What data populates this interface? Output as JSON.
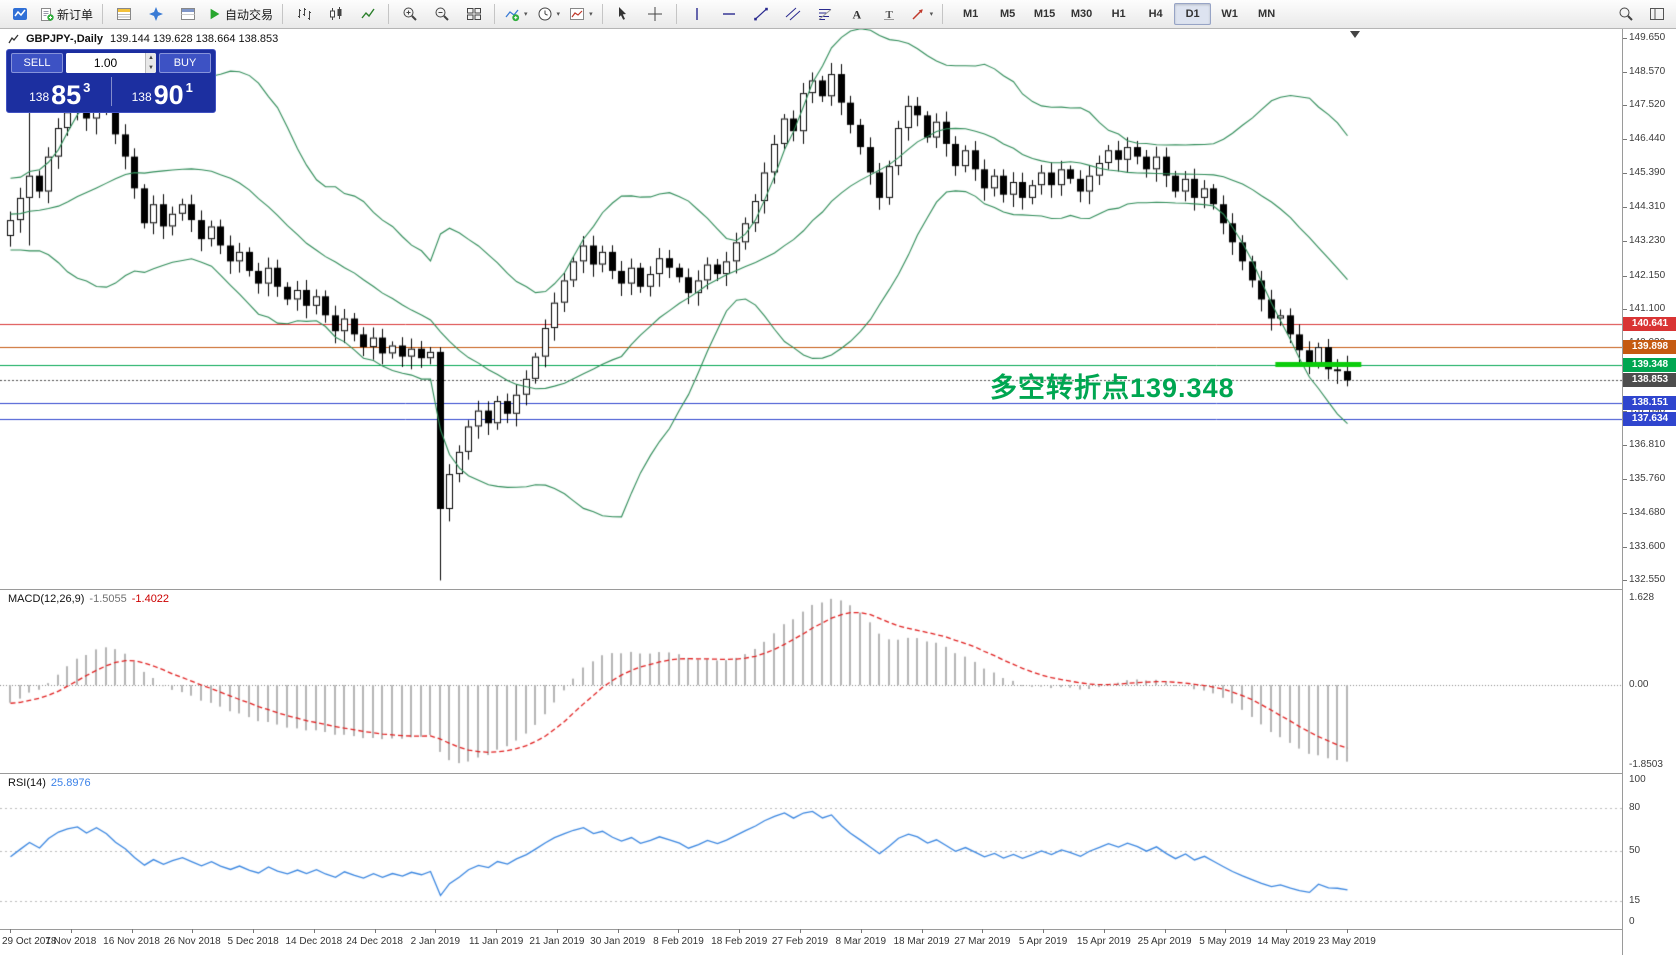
{
  "toolbar": {
    "new_order_label": "新订单",
    "autotrading_label": "自动交易",
    "timeframes": [
      "M1",
      "M5",
      "M15",
      "M30",
      "H1",
      "H4",
      "D1",
      "W1",
      "MN"
    ],
    "active_timeframe": "D1"
  },
  "chart": {
    "symbol_title": "GBPJPY-,Daily",
    "ohlc_display": "139.144 139.628 138.664 138.853",
    "annotation": "多空转折点139.348",
    "annotation_color": "#00A651"
  },
  "trade_panel": {
    "sell_label": "SELL",
    "buy_label": "BUY",
    "lot_size": "1.00",
    "sell_price_small": "138",
    "sell_price_big": "85",
    "sell_price_sup": "3",
    "buy_price_small": "138",
    "buy_price_big": "90",
    "buy_price_sup": "1"
  },
  "price_scale": {
    "ticks": [
      149.65,
      148.57,
      147.52,
      146.44,
      145.39,
      144.31,
      143.23,
      142.15,
      141.1,
      140.02,
      138.94,
      137.89,
      136.81,
      135.76,
      134.68,
      133.6,
      132.55
    ]
  },
  "macd_panel": {
    "label": "MACD(12,26,9)",
    "value1": "-1.5055",
    "value2": "-1.4022",
    "scale_top": "1.628",
    "scale_zero": "0.00",
    "scale_bottom": "-1.8503"
  },
  "rsi_panel": {
    "label": "RSI(14)",
    "value": "25.8976",
    "scale": [
      {
        "label": "100",
        "value": 100
      },
      {
        "label": "80",
        "value": 80
      },
      {
        "label": "50",
        "value": 50
      },
      {
        "label": "15",
        "value": 15
      },
      {
        "label": "0",
        "value": 0
      }
    ],
    "levels": [
      80,
      50,
      15
    ]
  },
  "time_axis": {
    "labels": [
      "29 Oct 2018",
      "7 Nov 2018",
      "16 Nov 2018",
      "26 Nov 2018",
      "5 Dec 2018",
      "14 Dec 2018",
      "24 Dec 2018",
      "2 Jan 2019",
      "11 Jan 2019",
      "21 Jan 2019",
      "30 Jan 2019",
      "8 Feb 2019",
      "18 Feb 2019",
      "27 Feb 2019",
      "8 Mar 2019",
      "18 Mar 2019",
      "27 Mar 2019",
      "5 Apr 2019",
      "15 Apr 2019",
      "25 Apr 2019",
      "5 May 2019",
      "14 May 2019",
      "23 May 2019"
    ]
  },
  "chart_data": {
    "type": "candlestick",
    "symbol": "GBPJPY",
    "timeframe": "Daily",
    "last_ohlc": {
      "open": 139.144,
      "high": 139.628,
      "low": 138.664,
      "close": 138.853
    },
    "first_open": 143.4,
    "pre_closes": [
      145.6,
      146.1,
      145.4,
      144.9,
      145.5,
      146.0,
      145.2,
      144.6,
      145.1,
      144.5,
      143.9,
      144.3,
      143.8,
      144.2,
      144.8,
      145.3,
      144.7,
      144.1,
      144.6,
      145.0,
      144.4,
      143.8,
      143.3,
      143.7,
      144.1,
      143.6,
      143.1,
      143.5,
      144.0,
      143.6
    ],
    "closes": [
      143.9,
      144.6,
      145.3,
      144.8,
      145.9,
      146.8,
      147.3,
      147.6,
      147.1,
      147.9,
      147.4,
      146.6,
      145.9,
      144.9,
      143.8,
      144.4,
      143.7,
      144.1,
      144.4,
      143.9,
      143.3,
      143.7,
      143.1,
      142.6,
      142.9,
      142.3,
      141.9,
      142.4,
      141.8,
      141.4,
      141.7,
      141.2,
      141.5,
      140.9,
      140.4,
      140.8,
      140.3,
      139.9,
      140.2,
      139.7,
      139.95,
      139.6,
      139.85,
      139.55,
      139.75,
      134.8,
      135.9,
      136.6,
      137.4,
      137.9,
      137.5,
      138.2,
      137.8,
      138.4,
      138.9,
      139.6,
      140.5,
      141.3,
      142.0,
      142.6,
      143.1,
      142.5,
      142.9,
      142.3,
      141.9,
      142.4,
      141.8,
      142.2,
      142.7,
      142.4,
      142.1,
      141.6,
      142.0,
      142.5,
      142.2,
      142.6,
      143.2,
      143.8,
      144.5,
      145.4,
      146.3,
      147.1,
      146.7,
      147.9,
      148.3,
      147.8,
      148.5,
      147.6,
      146.9,
      146.2,
      145.4,
      144.6,
      145.6,
      146.8,
      147.5,
      147.2,
      146.5,
      147.0,
      146.3,
      145.6,
      146.1,
      145.5,
      144.9,
      145.3,
      144.7,
      145.1,
      144.6,
      145.0,
      145.4,
      145.0,
      145.5,
      145.2,
      144.8,
      145.3,
      145.7,
      146.1,
      145.8,
      146.2,
      145.9,
      145.5,
      145.9,
      145.3,
      144.8,
      145.2,
      144.6,
      144.9,
      144.4,
      143.8,
      143.2,
      142.6,
      142.0,
      141.4,
      140.8,
      140.9,
      140.3,
      139.8,
      139.4,
      139.9,
      139.2,
      139.14,
      138.85
    ],
    "candle_overrides": [
      {
        "i": 2,
        "o": 144.6,
        "h": 147.4,
        "l": 143.1,
        "c": 145.3
      },
      {
        "i": 9,
        "o": 147.1,
        "h": 148.3,
        "l": 146.6,
        "c": 147.9
      },
      {
        "i": 45,
        "o": 139.75,
        "h": 139.9,
        "l": 132.55,
        "c": 134.8
      },
      {
        "i": 86,
        "o": 147.8,
        "h": 148.85,
        "l": 147.5,
        "c": 148.5
      },
      {
        "i": 140,
        "o": 139.144,
        "h": 139.628,
        "l": 138.664,
        "c": 138.853
      }
    ],
    "hlines": [
      {
        "price": 140.641,
        "label": "140.641",
        "color": "#D93434",
        "style": "solid"
      },
      {
        "price": 139.898,
        "label": "139.898",
        "color": "#C55A11",
        "style": "solid"
      },
      {
        "price": 139.348,
        "label": "139.348",
        "color": "#00A651",
        "style": "solid"
      },
      {
        "price": 138.853,
        "label": "138.853",
        "color": "#4D4D4D",
        "style": "dot"
      },
      {
        "price": 138.151,
        "label": "138.151",
        "color": "#2F45CE",
        "style": "solid"
      },
      {
        "price": 137.634,
        "label": "137.634",
        "color": "#2F45CE",
        "style": "solid"
      }
    ],
    "green_segment": {
      "price": 139.348,
      "from_candle": 132.5,
      "to_candle": 141.5,
      "color": "#0BCC0B",
      "width": 5
    },
    "bollinger": {
      "period": 20,
      "deviation": 2,
      "color": "#2E8B57"
    },
    "macd": {
      "fast": 12,
      "slow": 26,
      "signal": 9,
      "hist_color": "#B5B5B5",
      "signal_color": "#E02020"
    },
    "rsi": {
      "period": 14,
      "color": "#3A86E0"
    },
    "y_range_main": [
      132.28,
      149.92
    ]
  }
}
